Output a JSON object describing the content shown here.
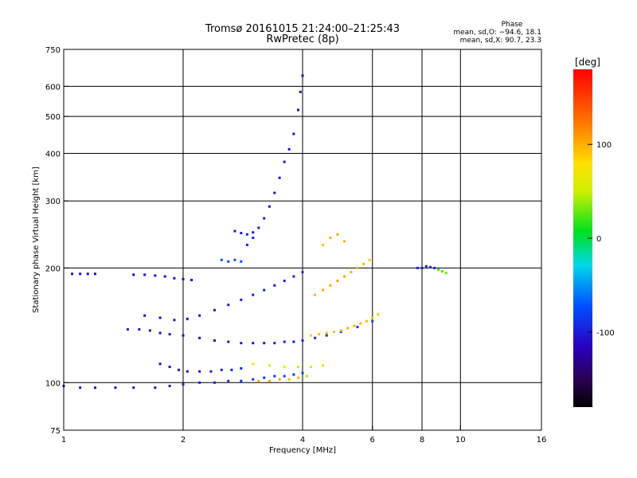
{
  "chart_data": {
    "type": "scatter",
    "title": "Tromsø 20161015 21:24:00–21:25:43",
    "subtitle": "RwPretec (8p)",
    "xlabel": "Frequency [MHz]",
    "ylabel": "Stationary phase Virtual Height [km]",
    "x_scale": "log",
    "y_scale": "log",
    "xlim": [
      1,
      16
    ],
    "ylim": [
      75,
      750
    ],
    "x_ticks": [
      1,
      2,
      4,
      6,
      8,
      10,
      16
    ],
    "y_ticks": [
      75,
      100,
      200,
      300,
      400,
      500,
      600,
      750
    ],
    "grid": true,
    "phase_info": {
      "label": "Phase",
      "o_line": "mean, sd,O: −94.6, 18.1",
      "x_line": "mean, sd,X:  90.7, 23.3"
    },
    "colorbar": {
      "label": "[deg]",
      "range": [
        -180,
        180
      ],
      "ticks": [
        100,
        0,
        -100
      ]
    },
    "series": [
      {
        "name": "O",
        "x": [
          1.0,
          1.1,
          1.2,
          1.35,
          1.5,
          1.7,
          1.85,
          2.0,
          2.2,
          2.4,
          2.6,
          2.8,
          3.0,
          3.2,
          3.4,
          3.6,
          3.8,
          4.0
        ],
        "y": [
          98,
          97,
          97,
          97,
          97,
          97,
          98,
          99,
          100,
          100,
          101,
          101,
          102,
          103,
          104,
          104,
          105,
          106
        ],
        "phase": [
          -110,
          -110,
          -110,
          -108,
          -108,
          -108,
          -105,
          -100,
          -100,
          -98,
          -95,
          -95,
          -90,
          -90,
          -88,
          -85,
          -85,
          -82
        ]
      },
      {
        "name": "O",
        "x": [
          1.45,
          1.55,
          1.65,
          1.75,
          1.85,
          2.0,
          2.2,
          2.4,
          2.6,
          2.8,
          3.0,
          3.2,
          3.4,
          3.6,
          3.8,
          4.0,
          4.3,
          4.6,
          5.0,
          5.5,
          6.0
        ],
        "y": [
          138,
          138,
          137,
          135,
          134,
          133,
          131,
          129,
          128,
          127,
          127,
          127,
          127,
          128,
          128,
          129,
          131,
          133,
          136,
          140,
          145
        ],
        "phase": [
          -105,
          -105,
          -105,
          -110,
          -110,
          -110,
          -112,
          -112,
          -110,
          -110,
          -108,
          -105,
          -105,
          -102,
          -100,
          -100,
          -95,
          -90,
          -90,
          -85,
          -80
        ]
      },
      {
        "name": "O",
        "x": [
          1.75,
          1.85,
          1.95,
          2.05,
          2.2,
          2.35,
          2.5,
          2.65,
          2.8
        ],
        "y": [
          112,
          110,
          108,
          107,
          107,
          107,
          108,
          108,
          109
        ],
        "phase": [
          -110,
          -110,
          -108,
          -108,
          -105,
          -105,
          -100,
          -100,
          -98
        ]
      },
      {
        "name": "O",
        "x": [
          1.6,
          1.75,
          1.9,
          2.05,
          2.2,
          2.4,
          2.6,
          2.8,
          3.0,
          3.2,
          3.4,
          3.6,
          3.8,
          4.0
        ],
        "y": [
          150,
          148,
          146,
          147,
          150,
          155,
          160,
          165,
          170,
          175,
          180,
          185,
          190,
          195
        ],
        "phase": [
          -115,
          -112,
          -110,
          -110,
          -108,
          -108,
          -105,
          -105,
          -102,
          -100,
          -100,
          -98,
          -95,
          -95
        ]
      },
      {
        "name": "O",
        "x": [
          1.05,
          1.1,
          1.15,
          1.2
        ],
        "y": [
          193,
          193,
          193,
          193
        ],
        "phase": [
          -115,
          -115,
          -115,
          -115
        ]
      },
      {
        "name": "O",
        "x": [
          1.5,
          1.6,
          1.7,
          1.8,
          1.9,
          2.0,
          2.1
        ],
        "y": [
          192,
          192,
          191,
          190,
          188,
          187,
          186
        ],
        "phase": [
          -110,
          -110,
          -112,
          -112,
          -115,
          -115,
          -115
        ]
      },
      {
        "name": "O",
        "x": [
          2.9,
          3.0,
          3.1,
          3.2,
          3.3,
          3.4,
          3.5,
          3.6,
          3.7,
          3.8,
          3.9,
          3.95,
          4.0
        ],
        "y": [
          230,
          240,
          255,
          270,
          290,
          315,
          345,
          380,
          410,
          450,
          520,
          580,
          640
        ],
        "phase": [
          -100,
          -100,
          -102,
          -102,
          -105,
          -105,
          -108,
          -108,
          -110,
          -110,
          -112,
          -112,
          -115
        ]
      },
      {
        "name": "O",
        "x": [
          2.7,
          2.8,
          2.9,
          3.0
        ],
        "y": [
          250,
          247,
          245,
          248
        ],
        "phase": [
          -105,
          -105,
          -100,
          -100
        ]
      },
      {
        "name": "O",
        "x": [
          2.5,
          2.6,
          2.7,
          2.8
        ],
        "y": [
          210,
          208,
          210,
          208
        ],
        "phase": [
          -80,
          -80,
          -75,
          -75
        ]
      },
      {
        "name": "O",
        "x": [
          7.8,
          8.0,
          8.2,
          8.4,
          8.6
        ],
        "y": [
          200,
          200,
          202,
          201,
          200
        ],
        "phase": [
          -100,
          -100,
          -98,
          -98,
          -95
        ]
      },
      {
        "name": "X",
        "x": [
          4.2,
          4.4,
          4.6,
          4.8,
          5.0,
          5.2,
          5.4,
          5.6,
          5.8,
          6.0,
          6.2
        ],
        "y": [
          133,
          134,
          135,
          136,
          137,
          139,
          141,
          143,
          145,
          148,
          151
        ],
        "phase": [
          90,
          92,
          95,
          95,
          98,
          100,
          100,
          98,
          95,
          92,
          90
        ]
      },
      {
        "name": "X",
        "x": [
          3.1,
          3.3,
          3.5,
          3.7,
          3.9,
          4.1
        ],
        "y": [
          101,
          101,
          102,
          102,
          103,
          104
        ],
        "phase": [
          100,
          102,
          105,
          98,
          95,
          92
        ]
      },
      {
        "name": "X",
        "x": [
          3.0,
          3.3,
          3.6,
          3.9,
          4.2,
          4.5
        ],
        "y": [
          112,
          111,
          110,
          110,
          110,
          111
        ],
        "phase": [
          85,
          80,
          78,
          70,
          75,
          80
        ]
      },
      {
        "name": "X",
        "x": [
          4.3,
          4.5,
          4.7,
          4.9,
          5.1,
          5.3,
          5.5,
          5.7,
          5.9
        ],
        "y": [
          170,
          175,
          180,
          185,
          190,
          195,
          200,
          205,
          210
        ],
        "phase": [
          95,
          100,
          102,
          105,
          105,
          100,
          98,
          95,
          92
        ]
      },
      {
        "name": "X",
        "x": [
          4.5,
          4.7,
          4.9,
          5.1
        ],
        "y": [
          230,
          240,
          245,
          235
        ],
        "phase": [
          95,
          100,
          105,
          100
        ]
      },
      {
        "name": "X",
        "x": [
          8.8,
          9.0,
          9.2
        ],
        "y": [
          198,
          196,
          194
        ],
        "phase": [
          20,
          25,
          30
        ]
      }
    ]
  }
}
